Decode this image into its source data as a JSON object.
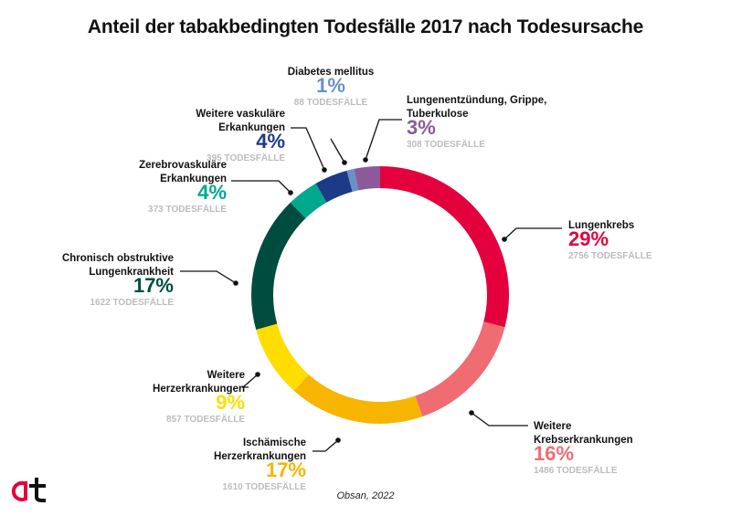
{
  "title": "Anteil der tabakbedingten Todesfälle 2017 nach Todesursache",
  "source": "Obsan, 2022",
  "logo_text": "at",
  "chart_data": {
    "type": "pie",
    "variant": "donut",
    "title": "Anteil der tabakbedingten Todesfälle 2017 nach Todesursache",
    "unit_label": "TODESFÄLLE",
    "slices": [
      {
        "key": "lungenkrebs",
        "label": [
          "Lungenkrebs"
        ],
        "percent": "29%",
        "value": 2756,
        "count_text": "2756 TODESFÄLLE",
        "color": "#e4003c"
      },
      {
        "key": "weitere-krebs",
        "label": [
          "Weitere",
          "Krebserkrankungen"
        ],
        "percent": "16%",
        "value": 1486,
        "count_text": "1486 TODESFÄLLE",
        "color": "#ee6c72"
      },
      {
        "key": "ischaemische-herz",
        "label": [
          "Ischämische",
          "Herzerkrankungen"
        ],
        "percent": "17%",
        "value": 1610,
        "count_text": "1610 TODESFÄLLE",
        "color": "#f7b400"
      },
      {
        "key": "weitere-herz",
        "label": [
          "Weitere",
          "Herzerkrankungen"
        ],
        "percent": "9%",
        "value": 857,
        "count_text": "857 TODESFÄLLE",
        "color": "#ffdd00"
      },
      {
        "key": "copd",
        "label": [
          "Chronisch obstruktive",
          "Lungenkrankheit"
        ],
        "percent": "17%",
        "value": 1622,
        "count_text": "1622 TODESFÄLLE",
        "color": "#004d3f"
      },
      {
        "key": "zerebrovaskulaer",
        "label": [
          "Zerebrovaskuläre",
          "Erkankungen"
        ],
        "percent": "4%",
        "value": 373,
        "count_text": "373 TODESFÄLLE",
        "color": "#00a88e"
      },
      {
        "key": "weitere-vaskulaer",
        "label": [
          "Weitere vaskuläre",
          "Erkankungen"
        ],
        "percent": "4%",
        "value": 395,
        "count_text": "395 TODESFÄLLE",
        "color": "#1b3a87"
      },
      {
        "key": "diabetes",
        "label": [
          "Diabetes mellitus"
        ],
        "percent": "1%",
        "value": 88,
        "count_text": "88 TODESFÄLLE",
        "color": "#6a91c7"
      },
      {
        "key": "lungenentzuendung",
        "label": [
          "Lungenentzündung, Grippe,",
          "Tuberkulose"
        ],
        "percent": "3%",
        "value": 308,
        "count_text": "308 TODESFÄLLE",
        "color": "#8c5a9a"
      }
    ]
  }
}
